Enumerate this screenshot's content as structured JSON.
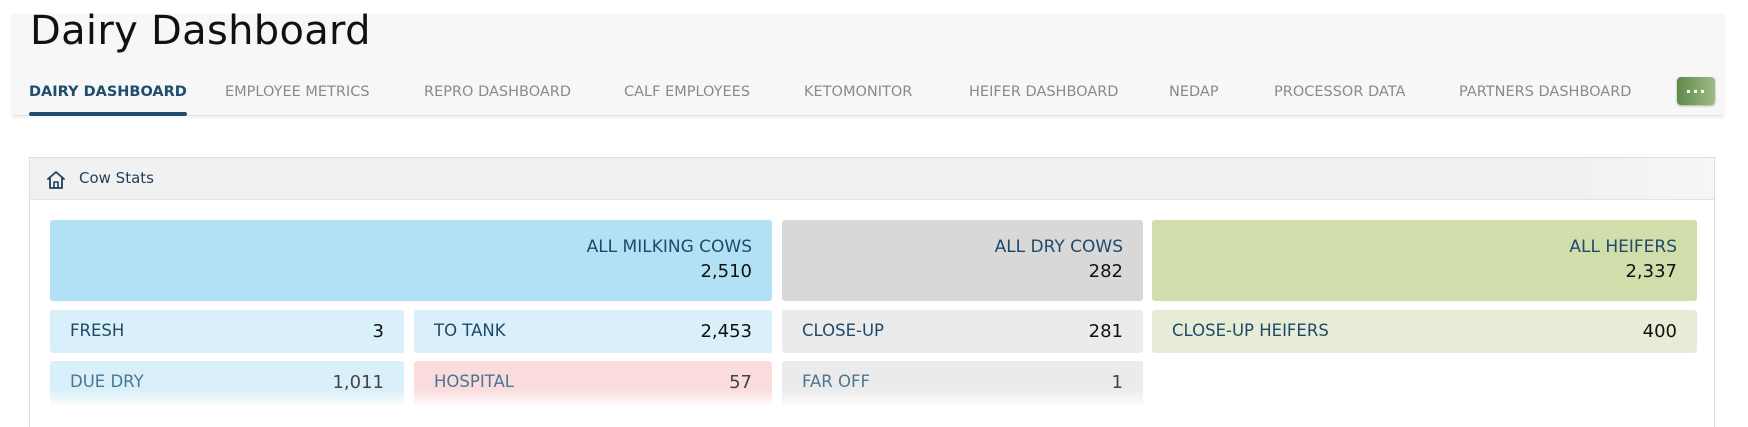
{
  "header": {
    "title": "Dairy Dashboard",
    "more_label": "···"
  },
  "tabs": [
    {
      "label": "DAIRY DASHBOARD"
    },
    {
      "label": "EMPLOYEE METRICS"
    },
    {
      "label": "REPRO DASHBOARD"
    },
    {
      "label": "CALF EMPLOYEES"
    },
    {
      "label": "KETOMONITOR"
    },
    {
      "label": "HEIFER DASHBOARD"
    },
    {
      "label": "NEDAP"
    },
    {
      "label": "PROCESSOR DATA"
    },
    {
      "label": "PARTNERS DASHBOARD"
    }
  ],
  "panel": {
    "title": "Cow Stats",
    "icon": "home-icon",
    "cards": {
      "all_milking": {
        "label": "ALL MILKING COWS",
        "value": "2,510",
        "color": "#b2e1f5"
      },
      "all_dry": {
        "label": "ALL DRY COWS",
        "value": "282",
        "color": "#d8d8d8"
      },
      "all_heifers": {
        "label": "ALL HEIFERS",
        "value": "2,337",
        "color": "#d1deab"
      },
      "fresh": {
        "label": "FRESH",
        "value": "3",
        "color": "#d9eff9"
      },
      "to_tank": {
        "label": "TO TANK",
        "value": "2,453",
        "color": "#d9eff9"
      },
      "close_up": {
        "label": "CLOSE-UP",
        "value": "281",
        "color": "#ebebeb"
      },
      "close_up_heifers": {
        "label": "CLOSE-UP HEIFERS",
        "value": "400",
        "color": "#e6ecd5"
      },
      "due_dry": {
        "label": "DUE DRY",
        "value": "1,011",
        "color": "#d9eff9"
      },
      "hospital": {
        "label": "HOSPITAL",
        "value": "57",
        "color": "#fbdcdc"
      },
      "far_off": {
        "label": "FAR OFF",
        "value": "1",
        "color": "#ebebeb"
      }
    }
  }
}
